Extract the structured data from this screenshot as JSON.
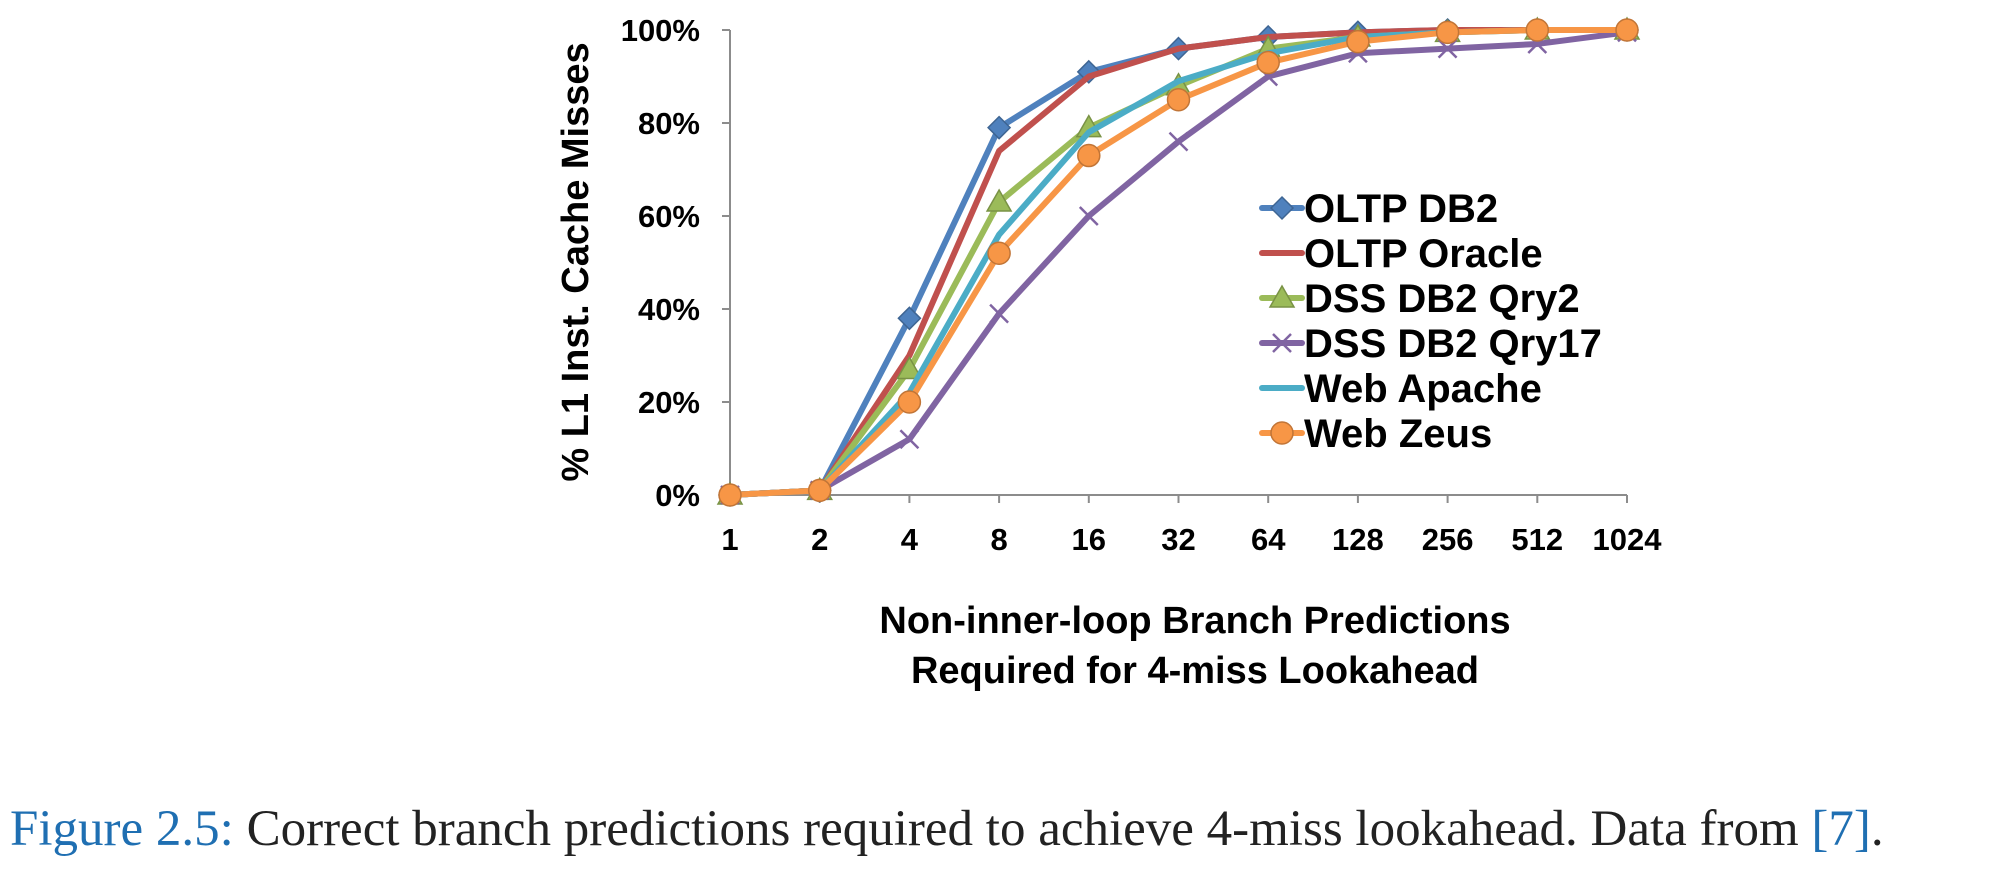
{
  "chart_data": {
    "type": "line",
    "title": "",
    "xlabel_lines": [
      "Non-inner-loop Branch Predictions",
      "Required for 4-miss Lookahead"
    ],
    "ylabel": "% L1 Inst. Cache Misses",
    "categories": [
      "1",
      "2",
      "4",
      "8",
      "16",
      "32",
      "64",
      "128",
      "256",
      "512",
      "1024"
    ],
    "yticks": [
      "0%",
      "20%",
      "40%",
      "60%",
      "80%",
      "100%"
    ],
    "ylim": [
      0,
      100
    ],
    "legend_position": "right-center",
    "series": [
      {
        "name": "OLTP DB2",
        "color": "#4f81bd",
        "marker": "diamond",
        "values": [
          0,
          1,
          38,
          79,
          91,
          96,
          98.5,
          99.5,
          100,
          100,
          100
        ]
      },
      {
        "name": "OLTP Oracle",
        "color": "#c0504d",
        "marker": "none",
        "values": [
          0,
          1,
          30,
          74,
          90,
          96,
          98.5,
          99.5,
          100,
          100,
          100
        ]
      },
      {
        "name": "DSS DB2 Qry2",
        "color": "#9bbb59",
        "marker": "triangle",
        "values": [
          0,
          1,
          27,
          63,
          79,
          88,
          96,
          98.5,
          99.5,
          100,
          100
        ]
      },
      {
        "name": "DSS DB2 Qry17",
        "color": "#8064a2",
        "marker": "x",
        "values": [
          0,
          1,
          12,
          39,
          60,
          76,
          90,
          95,
          96,
          97,
          99.5
        ]
      },
      {
        "name": "Web Apache",
        "color": "#4bacc6",
        "marker": "none",
        "values": [
          0,
          1,
          22,
          56,
          78,
          89,
          95,
          98.5,
          99.5,
          100,
          100
        ]
      },
      {
        "name": "Web Zeus",
        "color": "#f79646",
        "marker": "circle",
        "values": [
          0,
          1,
          20,
          52,
          73,
          85,
          93,
          97.5,
          99.5,
          100,
          100
        ]
      }
    ]
  },
  "caption": {
    "label": "Figure 2.5:",
    "text": " Correct branch predictions required to achieve 4-miss lookahead. Data from ",
    "ref": "[7]",
    "end": "."
  }
}
